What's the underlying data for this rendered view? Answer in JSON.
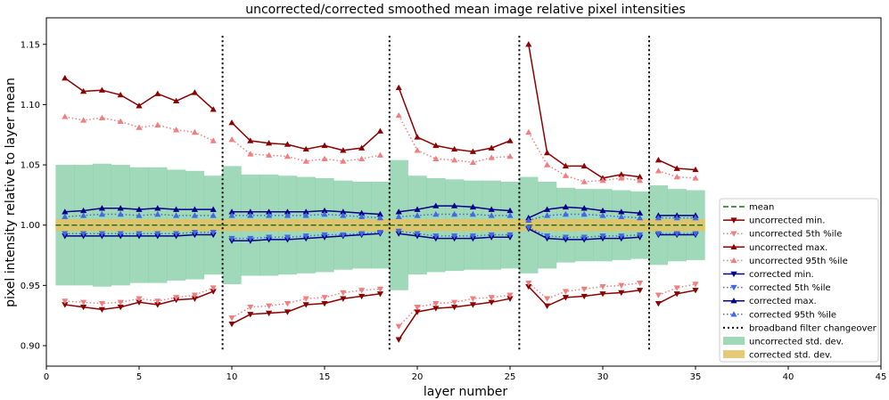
{
  "chart_data": {
    "type": "line",
    "title": "uncorrected/corrected smoothed mean image relative pixel intensities",
    "xlabel": "layer number",
    "ylabel": "pixel intensity relative to layer mean",
    "xlim": [
      0,
      45
    ],
    "ylim": [
      0.883,
      1.172
    ],
    "x_ticks": [
      0,
      5,
      10,
      15,
      20,
      25,
      30,
      35,
      40,
      45
    ],
    "y_ticks": [
      0.9,
      0.95,
      1.0,
      1.05,
      1.1,
      1.15
    ],
    "x_tick_labels": [
      "0",
      "5",
      "10",
      "15",
      "20",
      "25",
      "30",
      "35",
      "40",
      "45"
    ],
    "y_tick_labels": [
      "0.90",
      "0.95",
      "1.00",
      "1.05",
      "1.10",
      "1.15"
    ],
    "legend_position": "lower-right",
    "changeovers": [
      9.5,
      18.5,
      25.5,
      32.5
    ],
    "mean": 1.0,
    "groups": [
      {
        "x": [
          1,
          2,
          3,
          4,
          5,
          6,
          7,
          8,
          9
        ]
      },
      {
        "x": [
          10,
          11,
          12,
          13,
          14,
          15,
          16,
          17,
          18
        ]
      },
      {
        "x": [
          19,
          20,
          21,
          22,
          23,
          24,
          25
        ]
      },
      {
        "x": [
          26,
          27,
          28,
          29,
          30,
          31,
          32
        ]
      },
      {
        "x": [
          33,
          34,
          35
        ]
      }
    ],
    "series": [
      {
        "name": "mean",
        "key": "mean",
        "color": "#1a6a1a",
        "style": "dashed",
        "marker": "none"
      },
      {
        "name": "uncorrected min.",
        "key": "unc_min",
        "color": "#8b0000",
        "style": "solid",
        "marker": "tri-down",
        "values": [
          [
            0.934,
            0.932,
            0.93,
            0.932,
            0.936,
            0.934,
            0.938,
            0.939,
            0.945
          ],
          [
            0.918,
            0.926,
            0.927,
            0.928,
            0.934,
            0.935,
            0.939,
            0.941,
            0.943
          ],
          [
            0.905,
            0.928,
            0.931,
            0.932,
            0.934,
            0.936,
            0.939
          ],
          [
            0.949,
            0.933,
            0.94,
            0.941,
            0.943,
            0.944,
            0.946
          ],
          [
            0.935,
            0.943,
            0.946
          ]
        ]
      },
      {
        "name": "uncorrected 5th %ile",
        "key": "unc_p5",
        "color": "#f08080",
        "style": "dotted",
        "marker": "tri-down",
        "values": [
          [
            0.937,
            0.936,
            0.935,
            0.936,
            0.939,
            0.937,
            0.94,
            0.942,
            0.948
          ],
          [
            0.923,
            0.932,
            0.933,
            0.935,
            0.939,
            0.94,
            0.944,
            0.946,
            0.947
          ],
          [
            0.916,
            0.932,
            0.935,
            0.936,
            0.939,
            0.94,
            0.942
          ],
          [
            0.952,
            0.939,
            0.945,
            0.947,
            0.949,
            0.95,
            0.952
          ],
          [
            0.942,
            0.948,
            0.951
          ]
        ]
      },
      {
        "name": "uncorrected max.",
        "key": "unc_max",
        "color": "#8b0000",
        "style": "solid",
        "marker": "tri-up",
        "values": [
          [
            1.122,
            1.111,
            1.112,
            1.108,
            1.099,
            1.109,
            1.103,
            1.11,
            1.096
          ],
          [
            1.085,
            1.07,
            1.068,
            1.067,
            1.063,
            1.066,
            1.062,
            1.064,
            1.078
          ],
          [
            1.114,
            1.073,
            1.066,
            1.063,
            1.061,
            1.064,
            1.07
          ],
          [
            1.15,
            1.06,
            1.049,
            1.049,
            1.039,
            1.042,
            1.04
          ],
          [
            1.054,
            1.047,
            1.046
          ]
        ]
      },
      {
        "name": "uncorrected 95th %ile",
        "key": "unc_p95",
        "color": "#f08080",
        "style": "dotted",
        "marker": "tri-up",
        "values": [
          [
            1.09,
            1.087,
            1.089,
            1.086,
            1.081,
            1.083,
            1.079,
            1.077,
            1.07
          ],
          [
            1.071,
            1.059,
            1.058,
            1.057,
            1.053,
            1.055,
            1.053,
            1.055,
            1.058
          ],
          [
            1.091,
            1.062,
            1.055,
            1.054,
            1.052,
            1.056,
            1.057
          ],
          [
            1.077,
            1.05,
            1.041,
            1.036,
            1.037,
            1.039,
            1.037
          ],
          [
            1.045,
            1.04,
            1.039
          ]
        ]
      },
      {
        "name": "corrected min.",
        "key": "cor_min",
        "color": "#00008b",
        "style": "solid",
        "marker": "tri-down",
        "values": [
          [
            0.991,
            0.991,
            0.991,
            0.991,
            0.991,
            0.991,
            0.991,
            0.992,
            0.992
          ],
          [
            0.987,
            0.987,
            0.988,
            0.988,
            0.989,
            0.99,
            0.991,
            0.992,
            0.993
          ],
          [
            0.993,
            0.991,
            0.989,
            0.989,
            0.989,
            0.99,
            0.99
          ],
          [
            0.997,
            0.989,
            0.988,
            0.988,
            0.989,
            0.989,
            0.99
          ],
          [
            0.992,
            0.992,
            0.992
          ]
        ]
      },
      {
        "name": "corrected 5th %ile",
        "key": "cor_p5",
        "color": "#4169e1",
        "style": "dotted",
        "marker": "tri-down",
        "values": [
          [
            0.993,
            0.993,
            0.993,
            0.993,
            0.993,
            0.993,
            0.993,
            0.994,
            0.994
          ],
          [
            0.989,
            0.989,
            0.99,
            0.99,
            0.991,
            0.992,
            0.992,
            0.993,
            0.994
          ],
          [
            0.995,
            0.993,
            0.991,
            0.991,
            0.991,
            0.992,
            0.992
          ],
          [
            0.998,
            0.991,
            0.99,
            0.99,
            0.991,
            0.991,
            0.992
          ],
          [
            0.993,
            0.993,
            0.993
          ]
        ]
      },
      {
        "name": "corrected max.",
        "key": "cor_max",
        "color": "#00008b",
        "style": "solid",
        "marker": "tri-up",
        "values": [
          [
            1.011,
            1.012,
            1.014,
            1.014,
            1.013,
            1.014,
            1.013,
            1.013,
            1.013
          ],
          [
            1.011,
            1.011,
            1.011,
            1.011,
            1.011,
            1.012,
            1.011,
            1.01,
            1.009
          ],
          [
            1.011,
            1.013,
            1.016,
            1.016,
            1.015,
            1.013,
            1.012
          ],
          [
            1.006,
            1.013,
            1.015,
            1.014,
            1.012,
            1.011,
            1.01
          ],
          [
            1.008,
            1.008,
            1.008
          ]
        ]
      },
      {
        "name": "corrected 95th %ile",
        "key": "cor_p95",
        "color": "#4169e1",
        "style": "dotted",
        "marker": "tri-up",
        "values": [
          [
            1.007,
            1.008,
            1.009,
            1.009,
            1.008,
            1.009,
            1.008,
            1.008,
            1.008
          ],
          [
            1.008,
            1.008,
            1.008,
            1.008,
            1.008,
            1.009,
            1.008,
            1.007,
            1.006
          ],
          [
            1.007,
            1.008,
            1.009,
            1.009,
            1.009,
            1.008,
            1.008
          ],
          [
            1.004,
            1.008,
            1.009,
            1.009,
            1.008,
            1.007,
            1.006
          ],
          [
            1.006,
            1.006,
            1.006
          ]
        ]
      },
      {
        "name": "broadband filter changeover",
        "key": "changeover",
        "color": "#000000",
        "style": "dotted",
        "marker": "none"
      },
      {
        "name": "uncorrected std. dev.",
        "key": "unc_std",
        "color": "#66c28e",
        "style": "fill",
        "marker": "none",
        "values": [
          [
            0.05,
            0.05,
            0.051,
            0.05,
            0.048,
            0.048,
            0.046,
            0.045,
            0.041
          ],
          [
            0.049,
            0.042,
            0.042,
            0.041,
            0.04,
            0.039,
            0.037,
            0.036,
            0.036
          ],
          [
            0.054,
            0.041,
            0.039,
            0.038,
            0.037,
            0.037,
            0.036
          ],
          [
            0.04,
            0.036,
            0.031,
            0.03,
            0.03,
            0.029,
            0.028
          ],
          [
            0.033,
            0.03,
            0.029
          ]
        ]
      },
      {
        "name": "corrected std. dev.",
        "key": "cor_std",
        "color": "#e3c164",
        "style": "fill",
        "marker": "none",
        "values": [
          [
            0.005,
            0.005,
            0.005,
            0.005,
            0.005,
            0.005,
            0.005,
            0.005,
            0.005
          ],
          [
            0.005,
            0.005,
            0.005,
            0.005,
            0.005,
            0.005,
            0.005,
            0.005,
            0.005
          ],
          [
            0.005,
            0.005,
            0.005,
            0.005,
            0.005,
            0.005,
            0.005
          ],
          [
            0.005,
            0.005,
            0.005,
            0.005,
            0.005,
            0.005,
            0.005
          ],
          [
            0.005,
            0.005,
            0.005
          ]
        ]
      }
    ]
  }
}
